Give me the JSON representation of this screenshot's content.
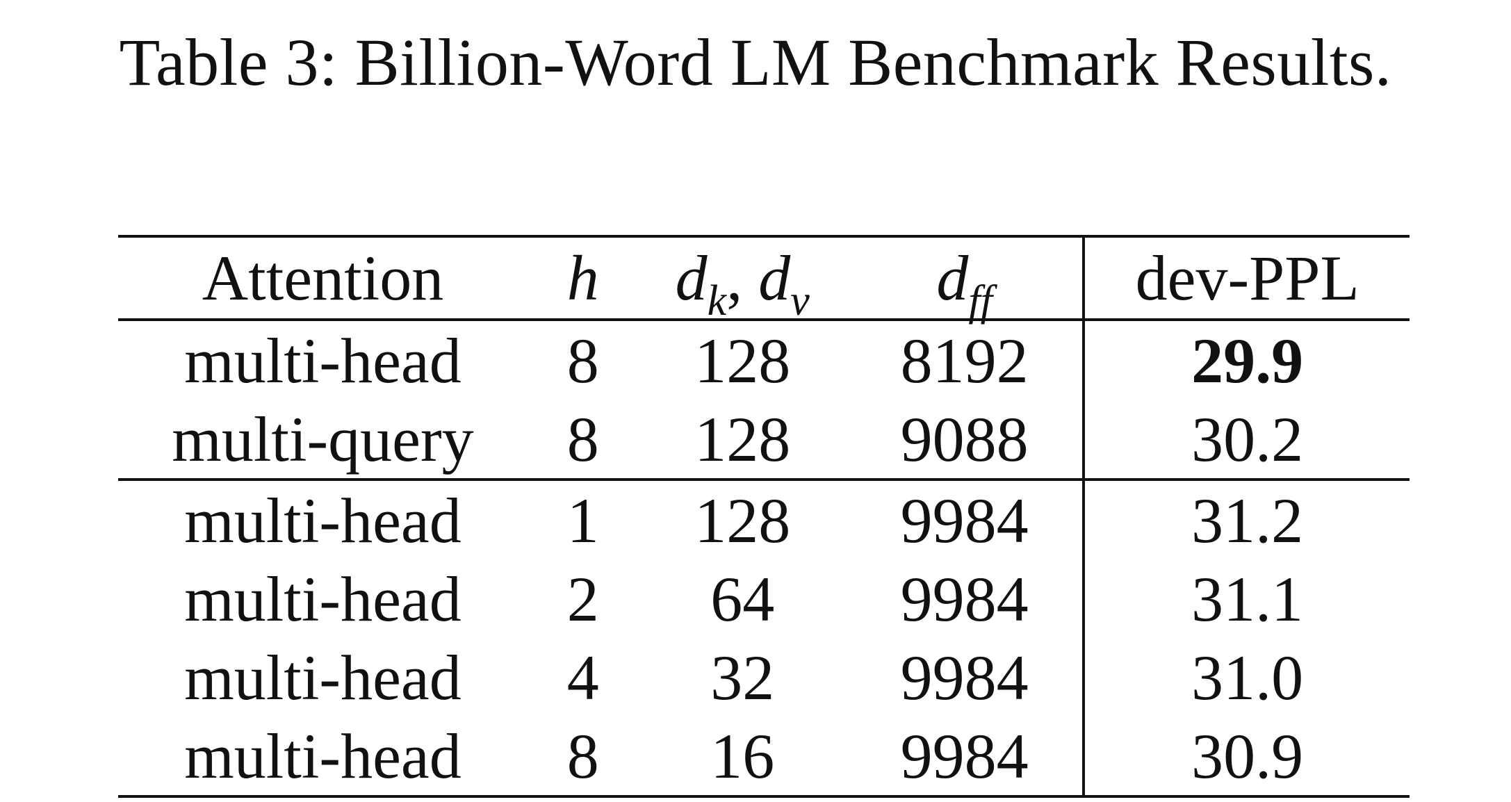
{
  "caption": "Table 3: Billion-Word LM Benchmark Results.",
  "table": {
    "headers": {
      "attention": "Attention",
      "h": "h",
      "dkdv": {
        "d1": "d",
        "s1": "k",
        "sep": ",",
        "d2": "d",
        "s2": "v"
      },
      "dff": {
        "d": "d",
        "s": "ff"
      },
      "devppl": "dev-PPL"
    },
    "rows": [
      {
        "attention": "multi-head",
        "h": "8",
        "dkdv": "128",
        "dff": "8192",
        "devppl": "29.9",
        "best": true
      },
      {
        "attention": "multi-query",
        "h": "8",
        "dkdv": "128",
        "dff": "9088",
        "devppl": "30.2"
      },
      {
        "attention": "multi-head",
        "h": "1",
        "dkdv": "128",
        "dff": "9984",
        "devppl": "31.2"
      },
      {
        "attention": "multi-head",
        "h": "2",
        "dkdv": "64",
        "dff": "9984",
        "devppl": "31.1"
      },
      {
        "attention": "multi-head",
        "h": "4",
        "dkdv": "32",
        "dff": "9984",
        "devppl": "31.0"
      },
      {
        "attention": "multi-head",
        "h": "8",
        "dkdv": "16",
        "dff": "9984",
        "devppl": "30.9"
      }
    ]
  }
}
